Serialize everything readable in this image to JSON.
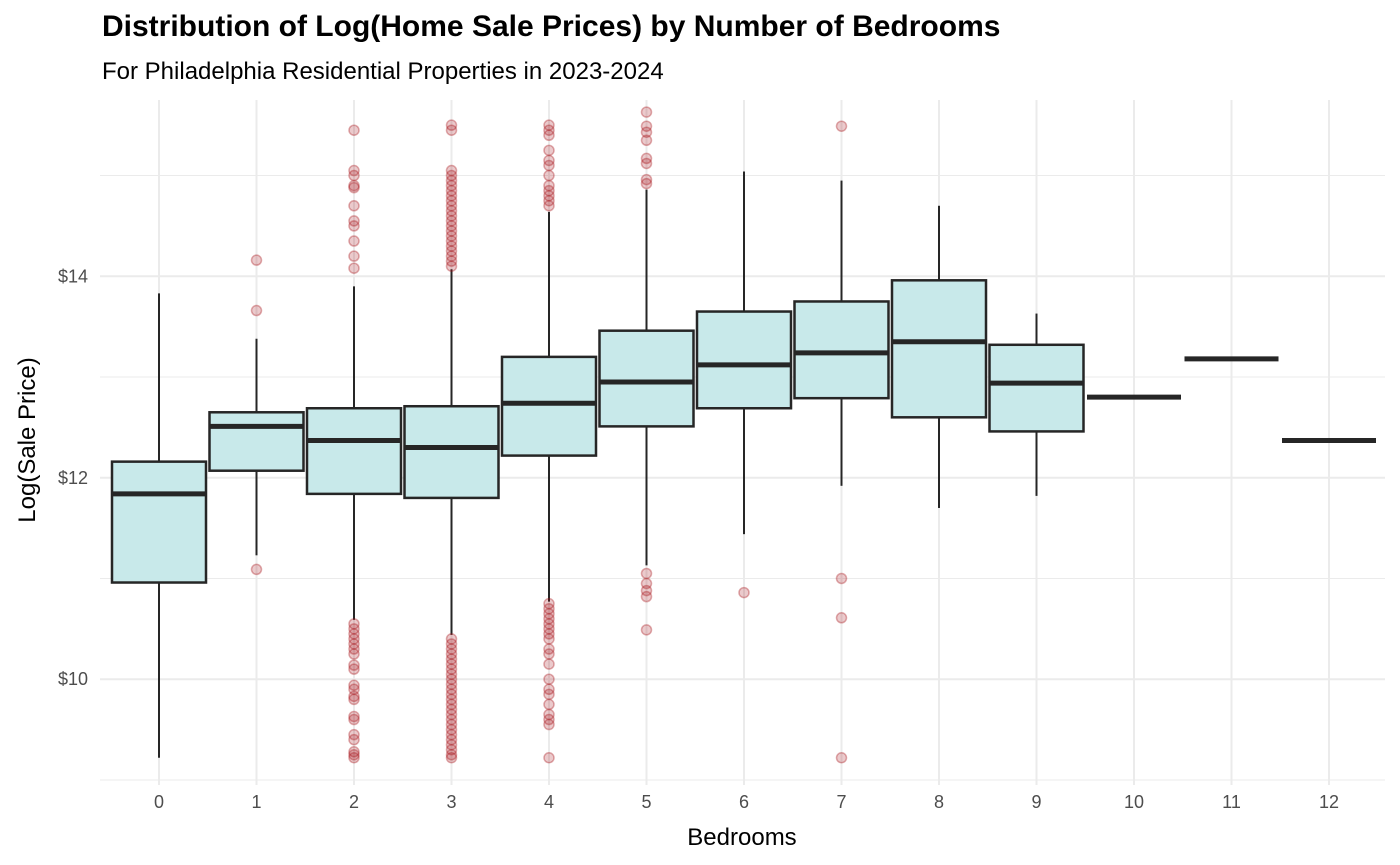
{
  "chart_data": {
    "type": "boxplot",
    "title": "Distribution of Log(Home Sale Prices) by Number of Bedrooms",
    "subtitle": "For Philadelphia Residential Properties in 2023-2024",
    "xlabel": "Bedrooms",
    "ylabel": "Log(Sale Price)",
    "ylim": [
      8.95,
      15.75
    ],
    "y_tick_values": [
      10,
      12,
      14
    ],
    "y_tick_labels": [
      "$10",
      "$12",
      "$14"
    ],
    "y_minor_gridlines": [
      9,
      11,
      13,
      15
    ],
    "grid": true,
    "colors": {
      "box_fill": "#c8e9ea",
      "box_line": "#262626",
      "outlier": "#a50f15",
      "grid": "#ebebeb"
    },
    "categories": [
      "0",
      "1",
      "2",
      "3",
      "4",
      "5",
      "6",
      "7",
      "8",
      "9",
      "10",
      "11",
      "12"
    ],
    "boxes": [
      {
        "q1": 10.96,
        "median": 11.84,
        "q3": 12.16,
        "whisker_low": 9.22,
        "whisker_high": 13.83,
        "outliers": []
      },
      {
        "q1": 12.07,
        "median": 12.51,
        "q3": 12.65,
        "whisker_low": 11.23,
        "whisker_high": 13.38,
        "outliers": [
          11.09,
          13.66,
          14.16
        ]
      },
      {
        "q1": 11.84,
        "median": 12.37,
        "q3": 12.69,
        "whisker_low": 10.59,
        "whisker_high": 13.9,
        "outliers": [
          9.22,
          9.25,
          9.28,
          9.4,
          9.45,
          9.6,
          9.63,
          9.8,
          9.83,
          9.9,
          9.94,
          10.1,
          10.14,
          10.25,
          10.3,
          10.35,
          10.4,
          10.45,
          10.5,
          10.55,
          14.08,
          14.2,
          14.35,
          14.5,
          14.55,
          14.7,
          14.88,
          14.9,
          15.0,
          15.05,
          15.45
        ]
      },
      {
        "q1": 11.8,
        "median": 12.3,
        "q3": 12.71,
        "whisker_low": 10.44,
        "whisker_high": 14.07,
        "outliers": [
          9.22,
          9.25,
          9.3,
          9.35,
          9.4,
          9.45,
          9.5,
          9.55,
          9.6,
          9.65,
          9.7,
          9.75,
          9.8,
          9.85,
          9.9,
          9.95,
          10.0,
          10.05,
          10.1,
          10.15,
          10.2,
          10.25,
          10.3,
          10.35,
          10.4,
          14.1,
          14.15,
          14.2,
          14.25,
          14.3,
          14.35,
          14.4,
          14.45,
          14.5,
          14.55,
          14.6,
          14.65,
          14.7,
          14.75,
          14.8,
          14.85,
          14.9,
          14.95,
          15.0,
          15.05,
          15.45,
          15.5
        ]
      },
      {
        "q1": 12.22,
        "median": 12.74,
        "q3": 13.2,
        "whisker_low": 10.77,
        "whisker_high": 14.64,
        "outliers": [
          9.22,
          9.55,
          9.6,
          9.65,
          9.75,
          9.85,
          9.9,
          10.0,
          10.15,
          10.25,
          10.3,
          10.4,
          10.45,
          10.5,
          10.55,
          10.6,
          10.65,
          10.7,
          10.75,
          14.7,
          14.75,
          14.8,
          14.85,
          14.9,
          15.0,
          15.1,
          15.15,
          15.25,
          15.4,
          15.45,
          15.5
        ]
      },
      {
        "q1": 12.51,
        "median": 12.95,
        "q3": 13.46,
        "whisker_low": 11.13,
        "whisker_high": 14.86,
        "outliers": [
          10.49,
          10.82,
          10.88,
          10.95,
          11.05,
          14.92,
          14.96,
          15.12,
          15.17,
          15.35,
          15.43,
          15.49,
          15.63
        ]
      },
      {
        "q1": 12.69,
        "median": 13.12,
        "q3": 13.65,
        "whisker_low": 11.44,
        "whisker_high": 15.04,
        "outliers": [
          10.86
        ]
      },
      {
        "q1": 12.79,
        "median": 13.24,
        "q3": 13.75,
        "whisker_low": 11.92,
        "whisker_high": 14.95,
        "outliers": [
          9.22,
          10.61,
          11.0,
          15.49
        ]
      },
      {
        "q1": 12.6,
        "median": 13.35,
        "q3": 13.96,
        "whisker_low": 11.7,
        "whisker_high": 14.7,
        "outliers": []
      },
      {
        "q1": 12.46,
        "median": 12.94,
        "q3": 13.32,
        "whisker_low": 11.82,
        "whisker_high": 13.63,
        "outliers": []
      },
      {
        "q1": 12.8,
        "median": 12.8,
        "q3": 12.8,
        "whisker_low": 12.8,
        "whisker_high": 12.8,
        "outliers": []
      },
      {
        "q1": 13.18,
        "median": 13.18,
        "q3": 13.18,
        "whisker_low": 13.18,
        "whisker_high": 13.18,
        "outliers": []
      },
      {
        "q1": 12.37,
        "median": 12.37,
        "q3": 12.37,
        "whisker_low": 12.37,
        "whisker_high": 12.37,
        "outliers": []
      }
    ]
  }
}
